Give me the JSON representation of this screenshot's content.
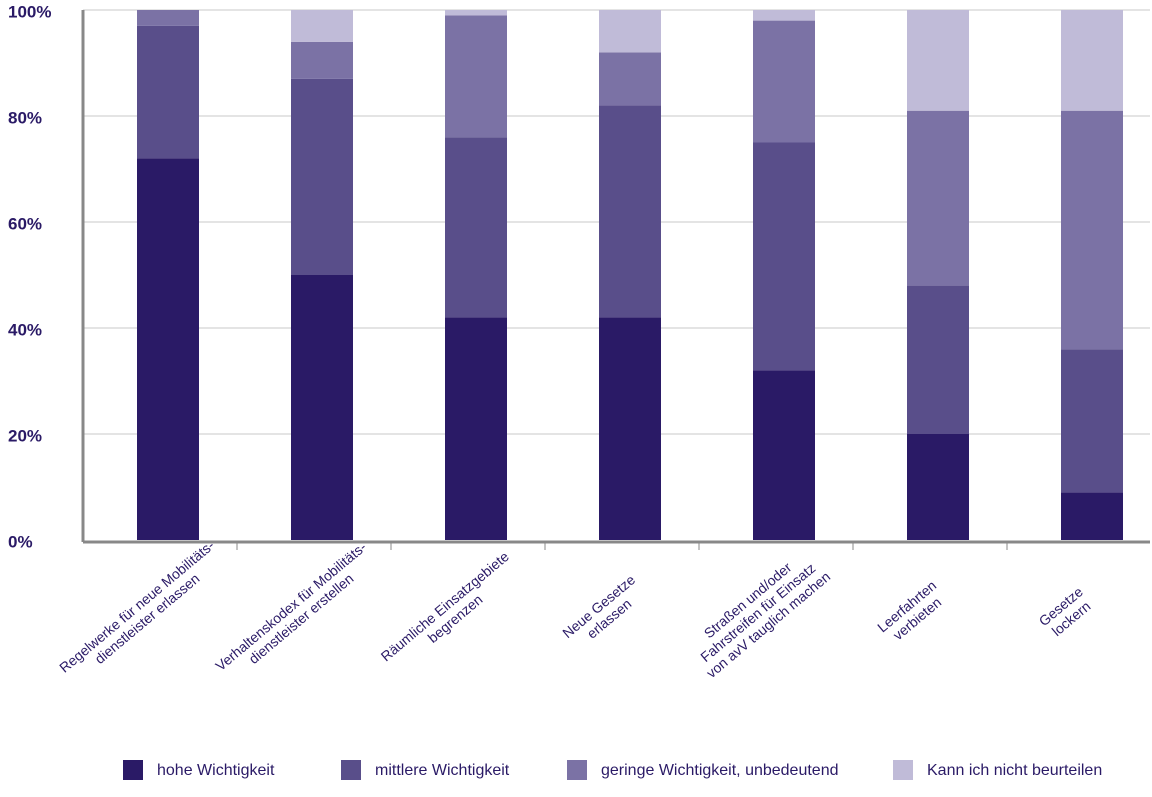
{
  "chart_data": {
    "type": "stacked_bar",
    "categories": [
      [
        "Regelwerke für neue Mobilitäts-",
        "dienstleister erlassen"
      ],
      [
        "Verhaltenskodex für Mobilitäts-",
        "dienstleister erstellen"
      ],
      [
        "Räumliche Einsatzgebiete",
        "begrenzen"
      ],
      [
        "Neue Gesetze",
        "erlassen"
      ],
      [
        "Straßen und/oder",
        "Fahrstreifen für Einsatz",
        "von avV tauglich machen"
      ],
      [
        "Leerfahrten",
        "verbieten"
      ],
      [
        "Gesetze",
        "lockern"
      ]
    ],
    "series": [
      {
        "name": "hohe Wichtigkeit",
        "color": "#2a1a66",
        "values": [
          72,
          50,
          42,
          42,
          32,
          20,
          9
        ]
      },
      {
        "name": "mittlere Wichtigkeit",
        "color": "#594e8a",
        "values": [
          25,
          37,
          34,
          40,
          43,
          28,
          27
        ]
      },
      {
        "name": "geringe Wichtigkeit, unbedeutend",
        "color": "#7b72a5",
        "values": [
          3,
          7,
          23,
          10,
          23,
          33,
          45
        ]
      },
      {
        "name": "Kann ich nicht beurteilen",
        "color": "#c0bbd8",
        "values": [
          0,
          6,
          1,
          8,
          2,
          19,
          19
        ]
      }
    ],
    "ylim": [
      0,
      100
    ],
    "yticks": [
      {
        "value": 0,
        "label": "0%"
      },
      {
        "value": 20,
        "label": "20%"
      },
      {
        "value": 40,
        "label": "40%"
      },
      {
        "value": 60,
        "label": "60%"
      },
      {
        "value": 80,
        "label": "80%"
      },
      {
        "value": 100,
        "label": "100%"
      }
    ],
    "grid": true,
    "legend": "bottom"
  }
}
